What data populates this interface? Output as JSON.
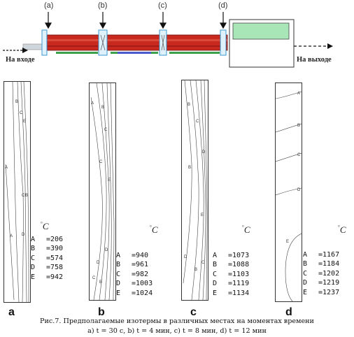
{
  "furnace": {
    "points": [
      "(a)",
      "(b)",
      "(c)",
      "(d)"
    ],
    "inlet_label": "На входе",
    "outlet_label": "На выходе"
  },
  "unit_label": "C",
  "unit_degree": "°",
  "panels": [
    {
      "letter": "a",
      "legend": [
        {
          "key": "A",
          "value": "=206"
        },
        {
          "key": "B",
          "value": "=390"
        },
        {
          "key": "C",
          "value": "=574"
        },
        {
          "key": "D",
          "value": "=758"
        },
        {
          "key": "E",
          "value": "=942"
        }
      ]
    },
    {
      "letter": "b",
      "legend": [
        {
          "key": "A",
          "value": "=940"
        },
        {
          "key": "B",
          "value": "=961"
        },
        {
          "key": "C",
          "value": "=982"
        },
        {
          "key": "D",
          "value": "=1003"
        },
        {
          "key": "E",
          "value": "=1024"
        }
      ]
    },
    {
      "letter": "c",
      "legend": [
        {
          "key": "A",
          "value": "=1073"
        },
        {
          "key": "B",
          "value": "=1088"
        },
        {
          "key": "C",
          "value": "=1103"
        },
        {
          "key": "D",
          "value": "=1119"
        },
        {
          "key": "E",
          "value": "=1134"
        }
      ]
    },
    {
      "letter": "d",
      "legend": [
        {
          "key": "A",
          "value": "=1167"
        },
        {
          "key": "B",
          "value": "=1184"
        },
        {
          "key": "C",
          "value": "=1202"
        },
        {
          "key": "D",
          "value": "=1219"
        },
        {
          "key": "E",
          "value": "=1237"
        }
      ]
    }
  ],
  "caption": {
    "line1": "Рис.7. Предполагаемые изотермы в различных местах на моментах времени",
    "line2": "a) t = 30 с, b) t = 4 мин, c) t = 8 мин, d) t = 12 мин"
  }
}
